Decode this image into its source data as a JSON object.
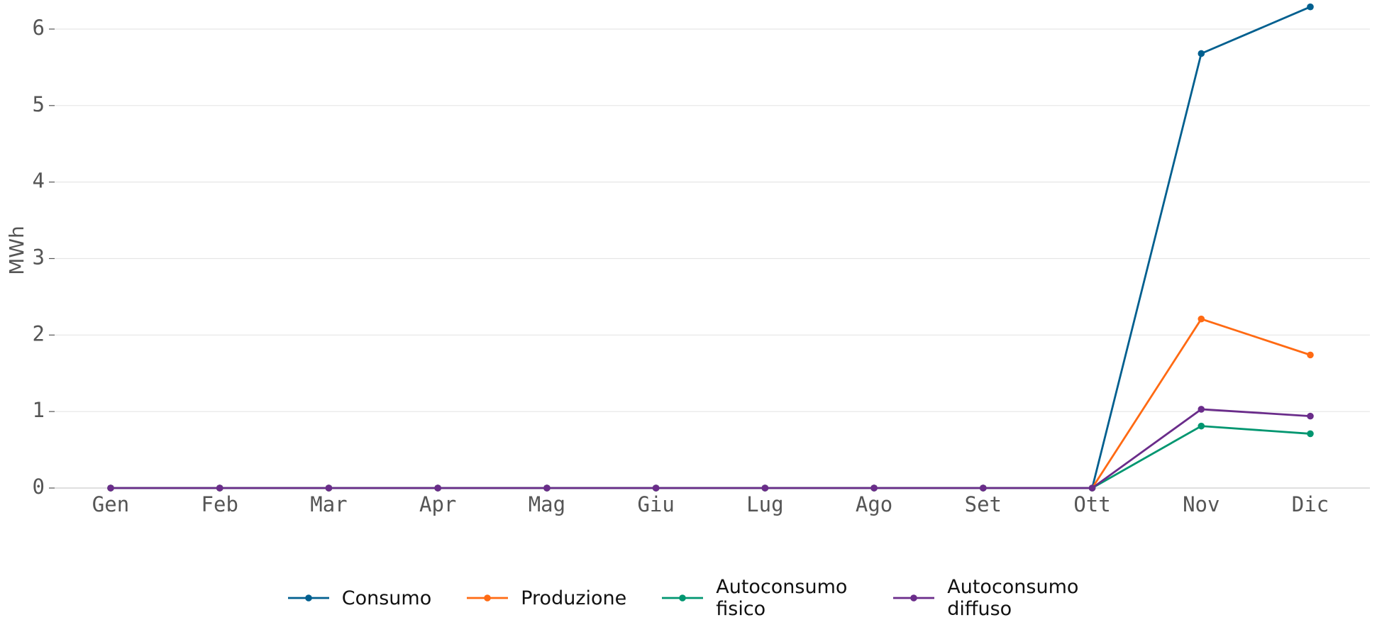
{
  "chart_data": {
    "type": "line",
    "y_label": "MWh",
    "categories": [
      "Gen",
      "Feb",
      "Mar",
      "Apr",
      "Mag",
      "Giu",
      "Lug",
      "Ago",
      "Set",
      "Ott",
      "Nov",
      "Dic"
    ],
    "series": [
      {
        "name": "Consumo",
        "color": "#005f8f",
        "values": [
          0,
          0,
          0,
          0,
          0,
          0,
          0,
          0,
          0,
          0,
          5.68,
          6.29
        ]
      },
      {
        "name": "Produzione",
        "color": "#ff6a13",
        "values": [
          0,
          0,
          0,
          0,
          0,
          0,
          0,
          0,
          0,
          0,
          2.21,
          1.74
        ]
      },
      {
        "name": "Autoconsumo fisico",
        "color": "#009670",
        "values": [
          0,
          0,
          0,
          0,
          0,
          0,
          0,
          0,
          0,
          0,
          0.81,
          0.71
        ]
      },
      {
        "name": "Autoconsumo diffuso",
        "color": "#6a2c8a",
        "values": [
          0,
          0,
          0,
          0,
          0,
          0,
          0,
          0,
          0,
          0,
          1.03,
          0.94
        ]
      }
    ],
    "ylim": [
      0,
      6.38
    ],
    "yticks": [
      0,
      1,
      2,
      3,
      4,
      5,
      6
    ],
    "grid": true
  }
}
